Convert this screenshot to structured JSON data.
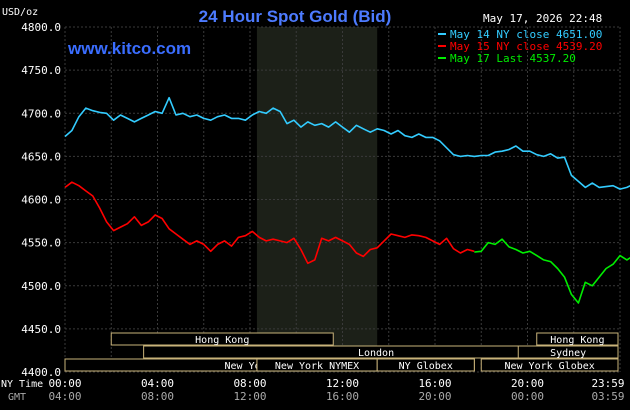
{
  "chart_data": {
    "type": "line",
    "title": "24 Hour Spot Gold (Bid)",
    "watermark": "www.kitco.com",
    "timestamp": "May 17, 2026 22:48",
    "ylabel": "USD/oz",
    "ylim": [
      4400,
      4800
    ],
    "yticks": [
      "4800.0",
      "4750.0",
      "4700.0",
      "4650.0",
      "4600.0",
      "4550.0",
      "4500.0",
      "4450.0",
      "4400.0"
    ],
    "x_row_ny_label": "NY Time",
    "x_row_gmt_label": "GMT",
    "xticks_ny": [
      "00:00",
      "04:00",
      "08:00",
      "12:00",
      "16:00",
      "20:00",
      "23:59"
    ],
    "xticks_gmt": [
      "04:00",
      "08:00",
      "12:00",
      "16:00",
      "20:00",
      "00:00",
      "03:59"
    ],
    "xlim_hours": [
      0,
      24
    ],
    "legend_position": "top-right",
    "sessions": [
      {
        "label": "Hong Kong",
        "start": 2.0,
        "end": 11.6,
        "row": 0
      },
      {
        "label": "London",
        "start": 3.4,
        "end": 23.5,
        "row": 1
      },
      {
        "label": "New York Globex",
        "start": 0.0,
        "end": 17.7,
        "row": 2
      },
      {
        "label": "New York NYMEX",
        "start": 8.3,
        "end": 13.5,
        "row": 2
      },
      {
        "label": "NY Globex",
        "start": 13.5,
        "end": 17.7,
        "row": 2
      },
      {
        "label": "Hong Kong",
        "start": 20.4,
        "end": 25.3,
        "row": 0
      },
      {
        "label": "Sydney",
        "start": 19.6,
        "end": 25.3,
        "row": 1
      },
      {
        "label": "New York Globex",
        "start": 18.0,
        "end": 25.3,
        "row": 2
      }
    ],
    "highlight_band_hours": [
      8.3,
      13.5
    ],
    "series": [
      {
        "name": "May 14 NY close 4651.00",
        "color": "#33ccff",
        "x": [
          0,
          0.3,
          0.6,
          0.9,
          1.2,
          1.5,
          1.8,
          2.1,
          2.4,
          2.7,
          3.0,
          3.3,
          3.6,
          3.9,
          4.2,
          4.5,
          4.8,
          5.1,
          5.4,
          5.7,
          6.0,
          6.3,
          6.6,
          6.9,
          7.2,
          7.5,
          7.8,
          8.1,
          8.4,
          8.7,
          9.0,
          9.3,
          9.6,
          9.9,
          10.2,
          10.5,
          10.8,
          11.1,
          11.4,
          11.7,
          12.0,
          12.3,
          12.6,
          12.9,
          13.2,
          13.5,
          13.8,
          14.1,
          14.4,
          14.7,
          15.0,
          15.3,
          15.6,
          15.9,
          16.2,
          16.5,
          16.8,
          17.1,
          17.4,
          17.7,
          18.0,
          18.3,
          18.6,
          18.9,
          19.2,
          19.5,
          19.8,
          20.1,
          20.4,
          20.7,
          21.0,
          21.3,
          21.6,
          21.9,
          22.2,
          22.5,
          22.8,
          23.1,
          23.4,
          23.7,
          24.0,
          24.3,
          24.6,
          24.9,
          25.2
        ],
        "y": [
          4673,
          4680,
          4696,
          4706,
          4703,
          4701,
          4700,
          4692,
          4698,
          4694,
          4690,
          4694,
          4698,
          4702,
          4700,
          4718,
          4698,
          4700,
          4696,
          4698,
          4694,
          4692,
          4696,
          4698,
          4694,
          4694,
          4692,
          4698,
          4702,
          4700,
          4706,
          4702,
          4688,
          4692,
          4684,
          4690,
          4686,
          4688,
          4684,
          4690,
          4684,
          4678,
          4686,
          4682,
          4678,
          4682,
          4680,
          4676,
          4680,
          4674,
          4672,
          4676,
          4672,
          4672,
          4668,
          4660,
          4652,
          4650,
          4651,
          4650,
          4651,
          4651,
          4655,
          4656,
          4658,
          4662,
          4656,
          4656,
          4652,
          4650,
          4653,
          4648,
          4649,
          4628,
          4621,
          4614,
          4619,
          4614,
          4615,
          4616,
          4612,
          4614,
          4618,
          4614,
          4615
        ]
      },
      {
        "name": "May 15 NY close 4539.20",
        "color": "#ff0000",
        "x": [
          0,
          0.3,
          0.6,
          0.9,
          1.2,
          1.5,
          1.8,
          2.1,
          2.4,
          2.7,
          3.0,
          3.3,
          3.6,
          3.9,
          4.2,
          4.5,
          4.8,
          5.1,
          5.4,
          5.7,
          6.0,
          6.3,
          6.6,
          6.9,
          7.2,
          7.5,
          7.8,
          8.1,
          8.4,
          8.7,
          9.0,
          9.3,
          9.6,
          9.9,
          10.2,
          10.5,
          10.8,
          11.1,
          11.4,
          11.7,
          12.0,
          12.3,
          12.6,
          12.9,
          13.2,
          13.5,
          13.8,
          14.1,
          14.4,
          14.7,
          15.0,
          15.3,
          15.6,
          15.9,
          16.2,
          16.5,
          16.8,
          17.1,
          17.4,
          17.7
        ],
        "y": [
          4614,
          4620,
          4616,
          4610,
          4604,
          4590,
          4574,
          4564,
          4568,
          4572,
          4580,
          4570,
          4574,
          4582,
          4578,
          4566,
          4560,
          4554,
          4548,
          4552,
          4548,
          4540,
          4548,
          4552,
          4546,
          4556,
          4558,
          4563,
          4556,
          4552,
          4554,
          4552,
          4550,
          4555,
          4542,
          4526,
          4530,
          4555,
          4552,
          4556,
          4552,
          4548,
          4538,
          4534,
          4542,
          4544,
          4552,
          4560,
          4558,
          4556,
          4559,
          4558,
          4556,
          4552,
          4548,
          4555,
          4543,
          4538,
          4542,
          4540
        ]
      },
      {
        "name": "May 17 Last 4537.20",
        "color": "#00ee00",
        "x": [
          17.7,
          18.0,
          18.3,
          18.6,
          18.9,
          19.2,
          19.5,
          19.8,
          20.1,
          20.4,
          20.7,
          21.0,
          21.3,
          21.6,
          21.9,
          22.2,
          22.5,
          22.8,
          23.1,
          23.4,
          23.7,
          24.0,
          24.3,
          24.6,
          24.9,
          25.2
        ],
        "y": [
          4539,
          4540,
          4550,
          4548,
          4554,
          4545,
          4542,
          4538,
          4540,
          4535,
          4530,
          4528,
          4520,
          4510,
          4490,
          4480,
          4504,
          4500,
          4510,
          4520,
          4525,
          4535,
          4530,
          4535,
          4537,
          4537
        ]
      }
    ]
  }
}
